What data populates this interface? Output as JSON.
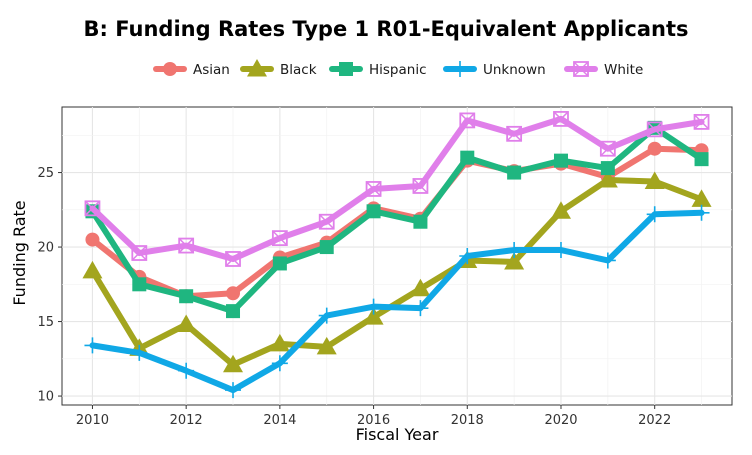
{
  "chart_data": {
    "type": "line",
    "title": "B: Funding Rates Type 1 R01-Equivalent Applicants",
    "xlabel": "Fiscal Year",
    "ylabel": "Funding Rate",
    "x": [
      2010,
      2011,
      2012,
      2013,
      2014,
      2015,
      2016,
      2017,
      2018,
      2019,
      2020,
      2021,
      2022,
      2023
    ],
    "xlim": [
      2009.35,
      2023.65
    ],
    "ylim": [
      9.4,
      29.4
    ],
    "xticks": [
      2010,
      2012,
      2014,
      2016,
      2018,
      2020,
      2022
    ],
    "yticks": [
      10,
      15,
      20,
      25
    ],
    "grid": true,
    "legend_position": "top",
    "series": [
      {
        "name": "Asian",
        "color": "#f07570",
        "marker": "circle",
        "values": [
          20.5,
          18.0,
          16.7,
          16.9,
          19.3,
          20.3,
          22.6,
          21.9,
          25.8,
          25.1,
          25.6,
          24.7,
          26.6,
          26.5
        ]
      },
      {
        "name": "Black",
        "color": "#a3a51e",
        "marker": "triangle",
        "values": [
          18.4,
          13.2,
          14.8,
          12.1,
          13.5,
          13.3,
          15.3,
          17.2,
          19.1,
          19.0,
          22.4,
          24.5,
          24.4,
          23.2
        ]
      },
      {
        "name": "Hispanic",
        "color": "#1fb680",
        "marker": "square",
        "values": [
          22.4,
          17.5,
          16.7,
          15.7,
          18.9,
          20.0,
          22.4,
          21.7,
          26.0,
          25.0,
          25.8,
          25.3,
          28.0,
          25.9
        ]
      },
      {
        "name": "Unknown",
        "color": "#10a8e6",
        "marker": "plus",
        "values": [
          13.4,
          12.9,
          11.7,
          10.4,
          12.2,
          15.4,
          16.0,
          15.9,
          19.4,
          19.8,
          19.8,
          19.1,
          22.2,
          22.3
        ]
      },
      {
        "name": "White",
        "color": "#e07fea",
        "marker": "square-cross",
        "values": [
          22.6,
          19.6,
          20.1,
          19.2,
          20.6,
          21.7,
          23.9,
          24.1,
          28.5,
          27.6,
          28.6,
          26.6,
          27.9,
          28.4
        ]
      }
    ]
  }
}
